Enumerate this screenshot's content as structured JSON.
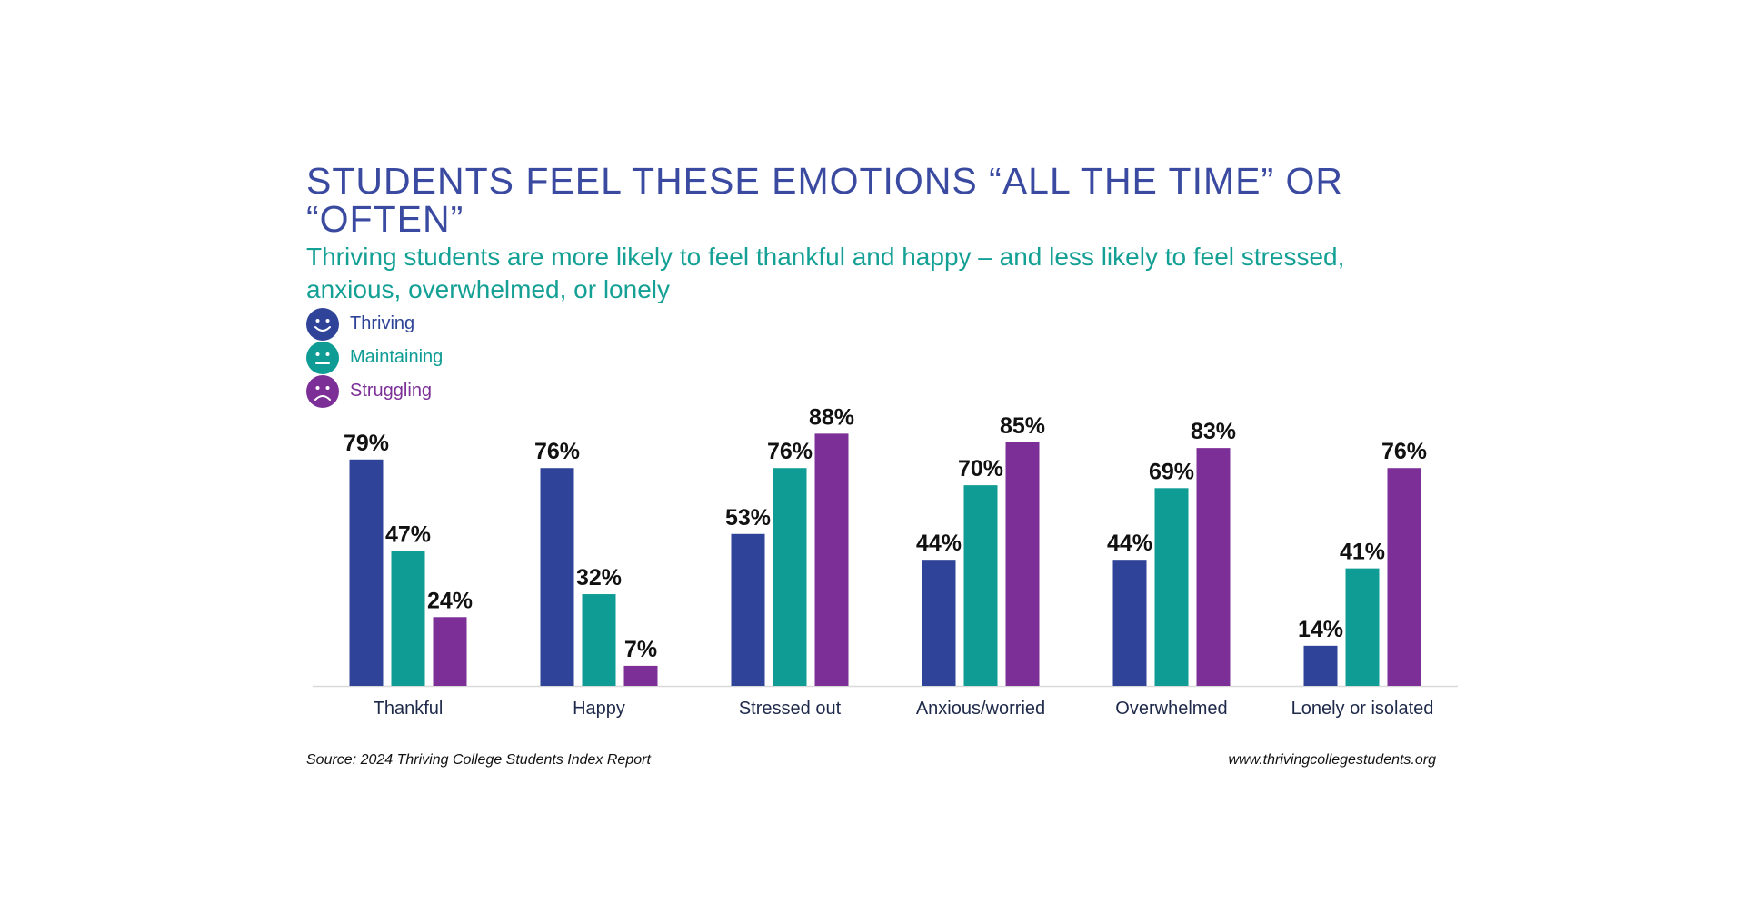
{
  "chart_data": {
    "type": "bar",
    "title": "STUDENTS FEEL THESE EMOTIONS “ALL THE TIME” OR “OFTEN”",
    "subtitle": "Thriving students are more likely to feel thankful and happy – and less likely to feel stressed, anxious, overwhelmed, or lonely",
    "categories": [
      "Thankful",
      "Happy",
      "Stressed out",
      "Anxious/worried",
      "Overwhelmed",
      "Lonely or isolated"
    ],
    "series": [
      {
        "name": "Thriving",
        "color": "#2f4498",
        "icon": "smiley-happy-icon",
        "values": [
          79,
          76,
          53,
          44,
          44,
          14
        ]
      },
      {
        "name": "Maintaining",
        "color": "#0e9c94",
        "icon": "smiley-neutral-icon",
        "values": [
          47,
          32,
          76,
          70,
          69,
          41
        ]
      },
      {
        "name": "Struggling",
        "color": "#7c2f97",
        "icon": "smiley-sad-icon",
        "values": [
          24,
          7,
          88,
          85,
          83,
          76
        ]
      }
    ],
    "value_suffix": "%",
    "ylim": [
      0,
      100
    ],
    "grid": false,
    "legend_position": "top-left"
  },
  "footer": {
    "source": "Source: 2024 Thriving College Students Index Report",
    "website": "www.thrivingcollegestudents.org"
  }
}
